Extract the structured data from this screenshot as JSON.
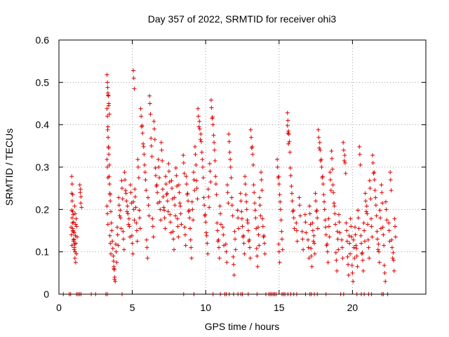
{
  "chart_data": {
    "type": "scatter",
    "title": "Day 357 of 2022, SRMTID for receiver ohi3",
    "xlabel": "GPS time / hours",
    "ylabel": "SRMTID / TECUs",
    "xlim": [
      0,
      25
    ],
    "ylim": [
      0,
      0.6
    ],
    "xticks": [
      "0",
      "5",
      "10",
      "15",
      "20"
    ],
    "yticks": [
      "0",
      "0.1",
      "0.2",
      "0.3",
      "0.4",
      "0.5",
      "0.6"
    ],
    "grid": true,
    "marker": "plus",
    "color": "#e00000",
    "series": [
      {
        "name": "SRMTID",
        "points": [
          [
            0.9,
            0.26
          ],
          [
            0.9,
            0.22
          ],
          [
            0.9,
            0.18
          ],
          [
            0.95,
            0.15
          ],
          [
            1.0,
            0.13
          ],
          [
            1.05,
            0.11
          ],
          [
            1.1,
            0.1
          ],
          [
            1.0,
            0.17
          ],
          [
            0.85,
            0.14
          ],
          [
            1.1,
            0.19
          ],
          [
            1.2,
            0.16
          ],
          [
            1.15,
            0.12
          ],
          [
            1.45,
            0.24
          ],
          [
            1.5,
            0.23
          ],
          [
            3.3,
            0.5
          ],
          [
            3.35,
            0.47
          ],
          [
            3.4,
            0.45
          ],
          [
            3.3,
            0.42
          ],
          [
            3.35,
            0.37
          ],
          [
            3.4,
            0.33
          ],
          [
            3.3,
            0.3
          ],
          [
            3.45,
            0.26
          ],
          [
            3.5,
            0.22
          ],
          [
            3.3,
            0.19
          ],
          [
            3.5,
            0.12
          ],
          [
            3.6,
            0.15
          ],
          [
            3.7,
            0.09
          ],
          [
            3.75,
            0.06
          ],
          [
            3.8,
            0.04
          ],
          [
            3.9,
            0.1
          ],
          [
            4.0,
            0.14
          ],
          [
            4.1,
            0.21
          ],
          [
            4.2,
            0.18
          ],
          [
            4.3,
            0.25
          ],
          [
            4.4,
            0.13
          ],
          [
            4.5,
            0.27
          ],
          [
            4.6,
            0.22
          ],
          [
            4.7,
            0.19
          ],
          [
            4.8,
            0.16
          ],
          [
            4.9,
            0.24
          ],
          [
            5.0,
            0.12
          ],
          [
            5.1,
            0.51
          ],
          [
            5.1,
            0.2
          ],
          [
            5.2,
            0.23
          ],
          [
            5.3,
            0.15
          ],
          [
            5.4,
            0.3
          ],
          [
            5.5,
            0.18
          ],
          [
            5.6,
            0.42
          ],
          [
            5.7,
            0.38
          ],
          [
            5.8,
            0.33
          ],
          [
            5.9,
            0.27
          ],
          [
            6.0,
            0.11
          ],
          [
            6.1,
            0.21
          ],
          [
            6.2,
            0.45
          ],
          [
            6.3,
            0.35
          ],
          [
            6.4,
            0.16
          ],
          [
            6.5,
            0.39
          ],
          [
            6.6,
            0.28
          ],
          [
            6.7,
            0.24
          ],
          [
            6.8,
            0.3
          ],
          [
            6.9,
            0.2
          ],
          [
            7.0,
            0.34
          ],
          [
            7.1,
            0.23
          ],
          [
            7.2,
            0.18
          ],
          [
            7.3,
            0.26
          ],
          [
            7.4,
            0.22
          ],
          [
            7.5,
            0.29
          ],
          [
            7.6,
            0.17
          ],
          [
            7.7,
            0.25
          ],
          [
            7.8,
            0.13
          ],
          [
            7.9,
            0.21
          ],
          [
            8.0,
            0.28
          ],
          [
            8.1,
            0.16
          ],
          [
            8.2,
            0.24
          ],
          [
            8.3,
            0.19
          ],
          [
            8.5,
            0.31
          ],
          [
            8.6,
            0.14
          ],
          [
            8.7,
            0.26
          ],
          [
            8.8,
            0.22
          ],
          [
            8.9,
            0.18
          ],
          [
            9.0,
            0.11
          ],
          [
            9.1,
            0.2
          ],
          [
            9.2,
            0.27
          ],
          [
            9.3,
            0.33
          ],
          [
            9.4,
            0.25
          ],
          [
            9.5,
            0.42
          ],
          [
            9.6,
            0.39
          ],
          [
            9.7,
            0.36
          ],
          [
            9.8,
            0.3
          ],
          [
            9.9,
            0.21
          ],
          [
            10.0,
            0.17
          ],
          [
            10.1,
            0.12
          ],
          [
            10.2,
            0.23
          ],
          [
            10.3,
            0.29
          ],
          [
            10.4,
            0.44
          ],
          [
            10.5,
            0.4
          ],
          [
            10.6,
            0.34
          ],
          [
            10.7,
            0.26
          ],
          [
            10.8,
            0.15
          ],
          [
            10.9,
            0.11
          ],
          [
            11.0,
            0.19
          ],
          [
            11.2,
            0.14
          ],
          [
            11.4,
            0.1
          ],
          [
            11.5,
            0.24
          ],
          [
            11.6,
            0.36
          ],
          [
            11.7,
            0.3
          ],
          [
            11.8,
            0.21
          ],
          [
            11.9,
            0.07
          ],
          [
            12.0,
            0.13
          ],
          [
            12.2,
            0.18
          ],
          [
            12.4,
            0.22
          ],
          [
            12.5,
            0.16
          ],
          [
            12.6,
            0.12
          ],
          [
            12.7,
            0.26
          ],
          [
            12.8,
            0.2
          ],
          [
            12.9,
            0.15
          ],
          [
            13.0,
            0.11
          ],
          [
            13.1,
            0.37
          ],
          [
            13.2,
            0.33
          ],
          [
            13.3,
            0.24
          ],
          [
            13.4,
            0.18
          ],
          [
            13.5,
            0.09
          ],
          [
            13.6,
            0.14
          ],
          [
            13.7,
            0.21
          ],
          [
            13.8,
            0.27
          ],
          [
            13.9,
            0.16
          ],
          [
            14.0,
            0.12
          ],
          [
            14.9,
            0.3
          ],
          [
            15.0,
            0.26
          ],
          [
            15.1,
            0.2
          ],
          [
            15.2,
            0.13
          ],
          [
            15.0,
            0.1
          ],
          [
            15.6,
            0.41
          ],
          [
            15.6,
            0.38
          ],
          [
            15.7,
            0.36
          ],
          [
            15.8,
            0.28
          ],
          [
            15.9,
            0.22
          ],
          [
            16.0,
            0.18
          ],
          [
            16.2,
            0.15
          ],
          [
            16.4,
            0.21
          ],
          [
            16.6,
            0.13
          ],
          [
            16.8,
            0.17
          ],
          [
            17.0,
            0.11
          ],
          [
            17.1,
            0.19
          ],
          [
            17.2,
            0.09
          ],
          [
            17.3,
            0.15
          ],
          [
            17.4,
            0.12
          ],
          [
            17.5,
            0.22
          ],
          [
            17.6,
            0.18
          ],
          [
            17.7,
            0.37
          ],
          [
            17.8,
            0.34
          ],
          [
            17.9,
            0.3
          ],
          [
            18.0,
            0.26
          ],
          [
            18.1,
            0.2
          ],
          [
            18.2,
            0.14
          ],
          [
            18.3,
            0.1
          ],
          [
            18.4,
            0.16
          ],
          [
            18.5,
            0.27
          ],
          [
            18.6,
            0.32
          ],
          [
            18.7,
            0.24
          ],
          [
            18.8,
            0.19
          ],
          [
            18.9,
            0.08
          ],
          [
            19.0,
            0.13
          ],
          [
            19.1,
            0.17
          ],
          [
            19.3,
            0.11
          ],
          [
            19.4,
            0.34
          ],
          [
            19.5,
            0.31
          ],
          [
            19.6,
            0.15
          ],
          [
            19.7,
            0.07
          ],
          [
            19.8,
            0.12
          ],
          [
            19.9,
            0.16
          ],
          [
            20.0,
            0.05
          ],
          [
            20.1,
            0.11
          ],
          [
            20.2,
            0.14
          ],
          [
            20.3,
            0.09
          ],
          [
            20.4,
            0.18
          ],
          [
            20.5,
            0.33
          ],
          [
            20.6,
            0.12
          ],
          [
            20.7,
            0.08
          ],
          [
            20.8,
            0.15
          ],
          [
            20.9,
            0.22
          ],
          [
            21.0,
            0.19
          ],
          [
            21.1,
            0.11
          ],
          [
            21.2,
            0.25
          ],
          [
            21.3,
            0.16
          ],
          [
            21.4,
            0.31
          ],
          [
            21.5,
            0.27
          ],
          [
            21.6,
            0.21
          ],
          [
            21.7,
            0.13
          ],
          [
            21.8,
            0.1
          ],
          [
            21.9,
            0.18
          ],
          [
            22.0,
            0.24
          ],
          [
            22.1,
            0.14
          ],
          [
            22.2,
            0.05
          ],
          [
            22.3,
            0.2
          ],
          [
            22.5,
            0.15
          ],
          [
            22.6,
            0.27
          ],
          [
            22.7,
            0.11
          ],
          [
            22.8,
            0.08
          ],
          [
            22.9,
            0.16
          ]
        ],
        "zero_points": [
          0.3,
          0.7,
          0.8,
          1.2,
          1.3,
          1.4,
          1.5,
          2.2,
          2.5,
          3.2,
          3.3,
          4.3,
          8.5,
          9.2,
          10.5,
          11.0,
          11.3,
          11.4,
          11.6,
          11.9,
          12.2,
          12.4,
          12.5,
          12.9,
          13.5,
          14.1,
          14.3,
          14.4,
          14.5,
          14.6,
          14.7,
          14.8,
          15.2,
          15.3,
          15.4,
          15.6,
          15.8,
          16.0,
          16.2,
          16.8,
          17.1,
          17.2,
          17.4,
          17.6,
          18.2,
          19.2,
          19.4,
          20.3,
          20.6,
          20.8,
          21.1,
          21.3,
          22.0,
          22.1,
          22.4
        ]
      }
    ]
  }
}
